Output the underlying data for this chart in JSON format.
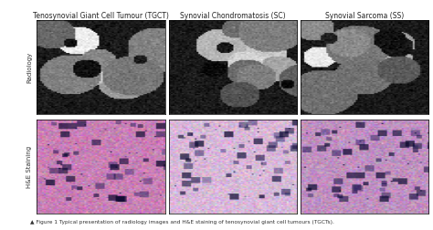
{
  "title_tgct": "Tenosynovial Giant Cell Tumour (TGCT)",
  "title_sc": "Synovial Chondromatosis (SC)",
  "title_ss": "Synovial Sarcoma (SS)",
  "row_label_radiology": "Radiology",
  "row_label_hne": "H&E Staining",
  "caption": "▲ Figure 1 Typical presentation of radiology images and H&E staining of tenosynovial giant cell tumours (TGCTs).",
  "bg_color": "#ffffff",
  "title_fontsize": 5.5,
  "caption_fontsize": 4.2,
  "row_label_fontsize": 5.0,
  "image_border_color": "#000000",
  "mri_colors": {
    "tgct": [
      "#1a1a1a",
      "#2e2e2e",
      "#3d3d3d",
      "#555555",
      "#707070",
      "#8a8a8a",
      "#a0a0a0",
      "#bbbbbb"
    ],
    "sc": [
      "#1a1a1a",
      "#2e2e2e",
      "#3d3d3d",
      "#555555",
      "#707070",
      "#8a8a8a",
      "#a0a0a0",
      "#bbbbbb"
    ],
    "ss": [
      "#1a1a1a",
      "#2e2e2e",
      "#3d3d3d",
      "#555555",
      "#707070",
      "#8a8a8a",
      "#a0a0a0",
      "#bbbbbb"
    ]
  },
  "hne_colors": {
    "tgct": "#c97fb5",
    "sc": "#d8b8d8",
    "ss": "#c090c0"
  },
  "left_label_bg": "#ffffff",
  "grid_line_color": "#cccccc"
}
